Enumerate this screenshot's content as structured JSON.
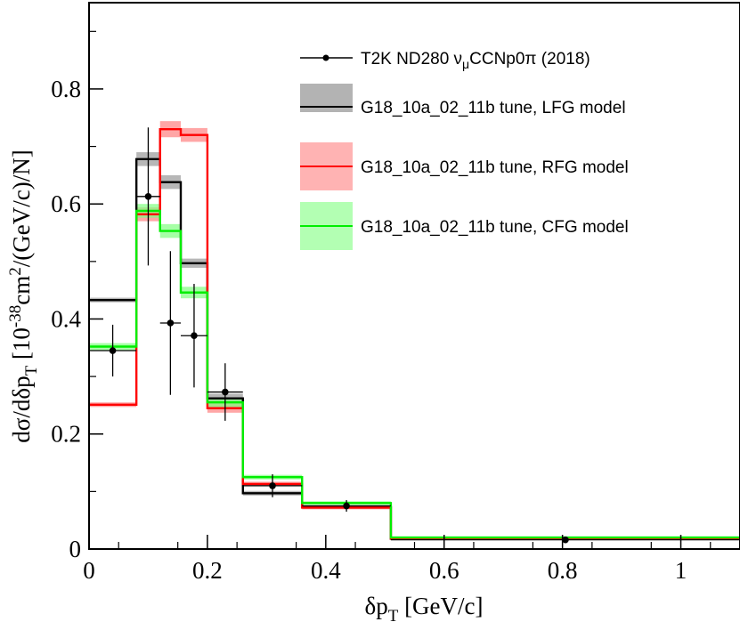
{
  "chart_data": {
    "type": "line",
    "title": "",
    "xlabel": {
      "prefix": "δp",
      "sub": "T",
      "suffix": " [GeV/c]"
    },
    "ylabel": {
      "part1": "dσ/dδp",
      "sub1": "T",
      "part2": " [10",
      "sup1": "-38",
      "part3": "cm",
      "sup2": "2",
      "part4": "/(GeV/c)/N]"
    },
    "xlim": [
      0,
      1.1
    ],
    "ylim": [
      0,
      0.95
    ],
    "x_ticks": [
      {
        "value": 0,
        "label": "0"
      },
      {
        "value": 0.2,
        "label": "0.2"
      },
      {
        "value": 0.4,
        "label": "0.4"
      },
      {
        "value": 0.6,
        "label": "0.6"
      },
      {
        "value": 0.8,
        "label": "0.8"
      },
      {
        "value": 1.0,
        "label": "1"
      }
    ],
    "y_ticks": [
      {
        "value": 0,
        "label": "0"
      },
      {
        "value": 0.2,
        "label": "0.2"
      },
      {
        "value": 0.4,
        "label": "0.4"
      },
      {
        "value": 0.6,
        "label": "0.6"
      },
      {
        "value": 0.8,
        "label": "0.8"
      }
    ],
    "bin_edges": [
      0,
      0.08,
      0.12,
      0.155,
      0.2,
      0.26,
      0.36,
      0.51,
      1.1
    ],
    "series": [
      {
        "name": "G18_10a_02_11b tune, LFG model",
        "style": "histogram",
        "color": "#000000",
        "band_color": "#999999",
        "values": [
          0.433,
          0.678,
          0.638,
          0.497,
          0.262,
          0.097,
          0.073,
          0.018
        ],
        "band_halfwidth": [
          0.004,
          0.012,
          0.012,
          0.008,
          0.008,
          0.004,
          0.003,
          0.002
        ]
      },
      {
        "name": "G18_10a_02_11b tune, RFG model",
        "style": "histogram",
        "color": "#ff0000",
        "band_color": "#ff8080",
        "values": [
          0.251,
          0.582,
          0.73,
          0.72,
          0.245,
          0.113,
          0.072,
          0.018
        ],
        "band_halfwidth": [
          0.004,
          0.012,
          0.014,
          0.012,
          0.008,
          0.004,
          0.003,
          0.002
        ]
      },
      {
        "name": "G18_10a_02_11b tune, CFG model",
        "style": "histogram",
        "color": "#00ee00",
        "band_color": "#80ff80",
        "values": [
          0.352,
          0.588,
          0.553,
          0.446,
          0.255,
          0.125,
          0.08,
          0.02
        ],
        "band_halfwidth": [
          0.006,
          0.012,
          0.012,
          0.01,
          0.008,
          0.004,
          0.003,
          0.002
        ]
      }
    ],
    "data_points": {
      "name": "T2K ND280 νμCCNp0π (2018)",
      "color": "#000000",
      "x": [
        0.04,
        0.1,
        0.1375,
        0.1775,
        0.23,
        0.31,
        0.435,
        0.805
      ],
      "y": [
        0.345,
        0.613,
        0.393,
        0.371,
        0.273,
        0.11,
        0.075,
        0.016
      ],
      "y_err": [
        0.045,
        0.12,
        0.125,
        0.09,
        0.05,
        0.02,
        0.01,
        0.003
      ]
    },
    "legend": {
      "position": "top-right",
      "entries": [
        {
          "label_pre": "T2K ND280 ν",
          "label_sub": "μ",
          "label_post": "CCNp0π (2018)"
        },
        {
          "label": "G18_10a_02_11b tune, LFG model"
        },
        {
          "label": "G18_10a_02_11b tune, RFG model"
        },
        {
          "label": "G18_10a_02_11b tune, CFG model"
        }
      ]
    },
    "grid": false
  }
}
